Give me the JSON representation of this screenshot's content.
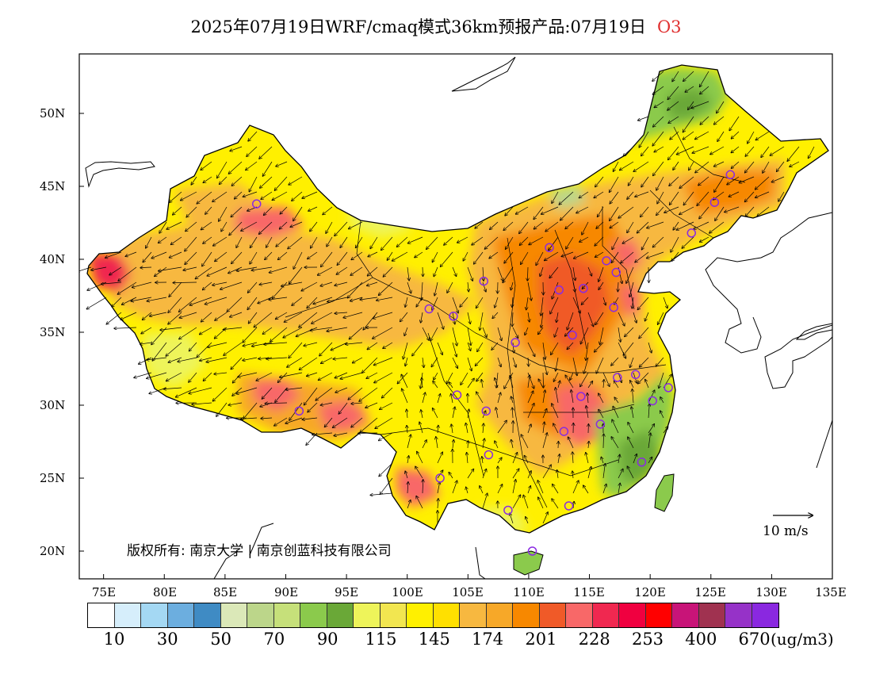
{
  "title": {
    "text": "2025年07月19日WRF/cmaq模式36km预报产品:07月19日",
    "species": "O3"
  },
  "map": {
    "lon_range": [
      73,
      135
    ],
    "lat_range": [
      18,
      54
    ],
    "y_ticks": [
      "50N",
      "45N",
      "40N",
      "35N",
      "30N",
      "25N",
      "20N"
    ],
    "x_ticks": [
      "75E",
      "80E",
      "85E",
      "90E",
      "95E",
      "100E",
      "105E",
      "110E",
      "115E",
      "120E",
      "125E",
      "130E",
      "135E"
    ],
    "copyright": "版权所有: 南京大学 | 南京创蓝科技有限公司",
    "wind_reference": "10 m/s"
  },
  "colorbar": {
    "colors": [
      "#ffffff",
      "#d6eefb",
      "#a4d8f3",
      "#6caedf",
      "#3f8bc4",
      "#dbe8b8",
      "#bcd68a",
      "#c6e07a",
      "#8bca4c",
      "#6aa837",
      "#eef45a",
      "#f2e650",
      "#fff000",
      "#ffe000",
      "#f7b840",
      "#f7a828",
      "#f78800",
      "#f05a28",
      "#f86868",
      "#f02850",
      "#f00040",
      "#ff0000",
      "#c81478",
      "#a03250",
      "#9632c8",
      "#8a28e0"
    ],
    "labels": [
      "10",
      "30",
      "50",
      "70",
      "90",
      "115",
      "145",
      "174",
      "201",
      "228",
      "253",
      "400",
      "670"
    ],
    "units": "(ug/m3)"
  },
  "stations": [
    {
      "lon": 87.6,
      "lat": 43.8
    },
    {
      "lon": 91.1,
      "lat": 29.6
    },
    {
      "lon": 101.8,
      "lat": 36.6
    },
    {
      "lon": 103.8,
      "lat": 36.1
    },
    {
      "lon": 106.3,
      "lat": 38.5
    },
    {
      "lon": 111.7,
      "lat": 40.8
    },
    {
      "lon": 112.5,
      "lat": 37.9
    },
    {
      "lon": 114.5,
      "lat": 38.0
    },
    {
      "lon": 116.4,
      "lat": 39.9
    },
    {
      "lon": 117.2,
      "lat": 39.1
    },
    {
      "lon": 117.0,
      "lat": 36.7
    },
    {
      "lon": 113.6,
      "lat": 34.8
    },
    {
      "lon": 108.9,
      "lat": 34.3
    },
    {
      "lon": 104.1,
      "lat": 30.7
    },
    {
      "lon": 106.5,
      "lat": 29.6
    },
    {
      "lon": 106.7,
      "lat": 26.6
    },
    {
      "lon": 102.7,
      "lat": 25.0
    },
    {
      "lon": 108.3,
      "lat": 22.8
    },
    {
      "lon": 113.3,
      "lat": 23.1
    },
    {
      "lon": 110.3,
      "lat": 20.0
    },
    {
      "lon": 112.9,
      "lat": 28.2
    },
    {
      "lon": 114.3,
      "lat": 30.6
    },
    {
      "lon": 115.9,
      "lat": 28.7
    },
    {
      "lon": 117.3,
      "lat": 31.9
    },
    {
      "lon": 118.8,
      "lat": 32.1
    },
    {
      "lon": 121.5,
      "lat": 31.2
    },
    {
      "lon": 120.2,
      "lat": 30.3
    },
    {
      "lon": 119.3,
      "lat": 26.1
    },
    {
      "lon": 123.4,
      "lat": 41.8
    },
    {
      "lon": 125.3,
      "lat": 43.9
    },
    {
      "lon": 126.6,
      "lat": 45.8
    }
  ]
}
